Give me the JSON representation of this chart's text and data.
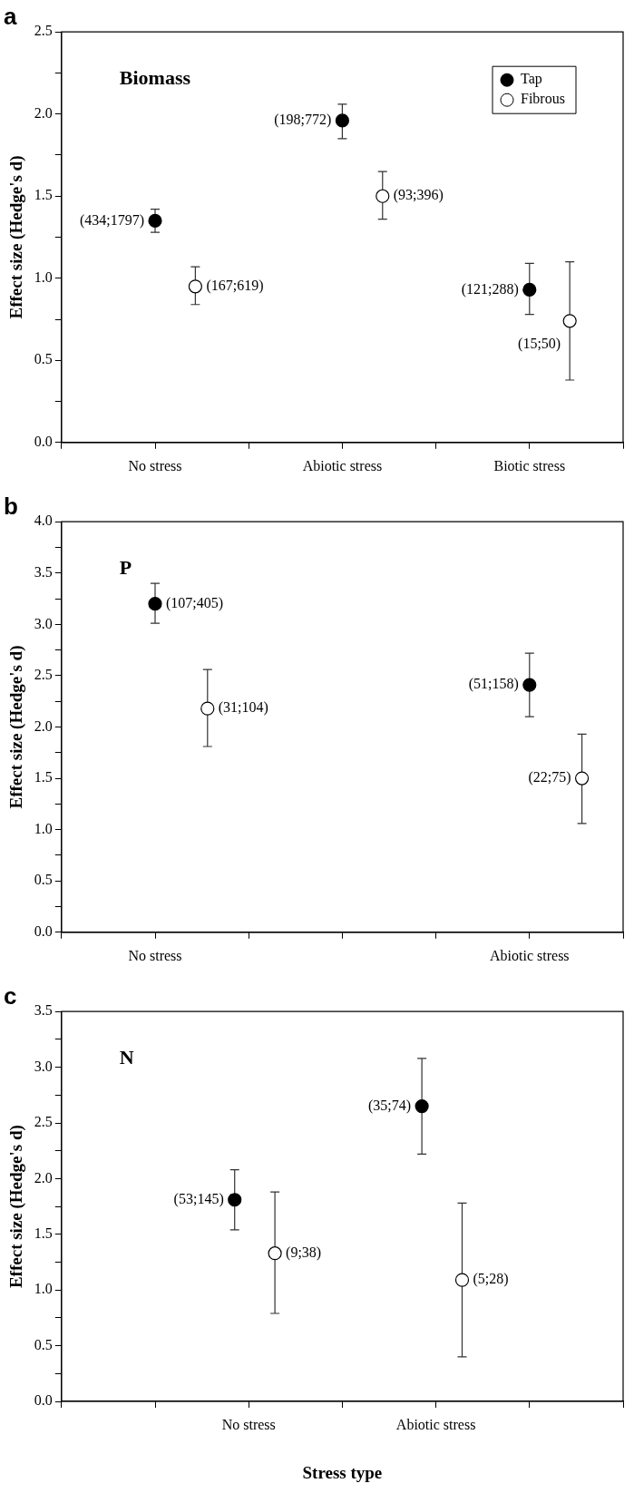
{
  "chart_data": [
    {
      "type": "scatter",
      "title": "a",
      "ylabel": "Effect size (Hedge's d)",
      "annotations": [
        "Biomass"
      ],
      "categories": [
        "No stress",
        "Abiotic stress",
        "Biotic stress"
      ],
      "marker": "circle",
      "legend": "top right",
      "grid": false,
      "ylim": [
        0,
        2.5
      ],
      "yticks": [
        {
          "value": 0,
          "label": "0.0"
        },
        {
          "value": 0.25,
          "label": null
        },
        {
          "value": 0.5,
          "label": "0.5"
        },
        {
          "value": 0.75,
          "label": null
        },
        {
          "value": 1,
          "label": "1.0"
        },
        {
          "value": 1.25,
          "label": null
        },
        {
          "value": 1.5,
          "label": "1.5"
        },
        {
          "value": 1.75,
          "label": null
        },
        {
          "value": 2,
          "label": "2.0"
        },
        {
          "value": 2.25,
          "label": null
        },
        {
          "value": 2.5,
          "label": "2.5"
        }
      ],
      "series": [
        {
          "name": "Tap",
          "color": "#000000",
          "values": [
            1.35,
            1.96,
            0.93
          ],
          "errors": [
            [
              1.28,
              1.42
            ],
            [
              1.85,
              2.06
            ],
            [
              0.78,
              1.09
            ]
          ],
          "value_labels": [
            "(434;1797)",
            "(198;772)",
            "(121;288)"
          ]
        },
        {
          "name": "Fibrous",
          "color": "#ffffff",
          "values": [
            0.95,
            1.5,
            0.74
          ],
          "errors": [
            [
              0.84,
              1.07
            ],
            [
              1.36,
              1.65
            ],
            [
              0.38,
              1.1
            ]
          ],
          "value_labels": [
            "(167;619)",
            "(93;396)",
            "(15;50)"
          ]
        }
      ]
    },
    {
      "type": "scatter",
      "title": "b",
      "ylabel": "Effect size (Hedge's d)",
      "annotations": [
        "P"
      ],
      "categories": [
        "No stress",
        "Abiotic stress"
      ],
      "marker": "circle",
      "grid": false,
      "ylim": [
        0,
        4
      ],
      "yticks": [
        {
          "value": 0,
          "label": "0.0"
        },
        {
          "value": 0.25,
          "label": null
        },
        {
          "value": 0.5,
          "label": "0.5"
        },
        {
          "value": 0.75,
          "label": null
        },
        {
          "value": 1,
          "label": "1.0"
        },
        {
          "value": 1.25,
          "label": null
        },
        {
          "value": 1.5,
          "label": "1.5"
        },
        {
          "value": 1.75,
          "label": null
        },
        {
          "value": 2,
          "label": "2.0"
        },
        {
          "value": 2.25,
          "label": null
        },
        {
          "value": 2.5,
          "label": "2.5"
        },
        {
          "value": 2.75,
          "label": null
        },
        {
          "value": 3,
          "label": "3.0"
        },
        {
          "value": 3.25,
          "label": null
        },
        {
          "value": 3.5,
          "label": "3.5"
        },
        {
          "value": 3.75,
          "label": null
        },
        {
          "value": 4,
          "label": "4.0"
        }
      ],
      "series": [
        {
          "color": "#000000",
          "values": [
            3.2,
            2.41
          ],
          "errors": [
            [
              3.01,
              3.4
            ],
            [
              2.1,
              2.72
            ]
          ],
          "value_labels": [
            "(107;405)",
            "(51;158)"
          ]
        },
        {
          "color": "#ffffff",
          "values": [
            2.18,
            1.5
          ],
          "errors": [
            [
              1.81,
              2.56
            ],
            [
              1.06,
              1.93
            ]
          ],
          "value_labels": [
            "(31;104)",
            "(22;75)"
          ]
        }
      ]
    },
    {
      "type": "scatter",
      "title": "c",
      "xlabel": "Stress type",
      "ylabel": "Effect size (Hedge's d)",
      "annotations": [
        "N"
      ],
      "categories": [
        "No stress",
        "Abiotic stress"
      ],
      "marker": "circle",
      "grid": false,
      "ylim": [
        0,
        3.5
      ],
      "yticks": [
        {
          "value": 0,
          "label": "0.0"
        },
        {
          "value": 0.25,
          "label": null
        },
        {
          "value": 0.5,
          "label": "0.5"
        },
        {
          "value": 0.75,
          "label": null
        },
        {
          "value": 1,
          "label": "1.0"
        },
        {
          "value": 1.25,
          "label": null
        },
        {
          "value": 1.5,
          "label": "1.5"
        },
        {
          "value": 1.75,
          "label": null
        },
        {
          "value": 2,
          "label": "2.0"
        },
        {
          "value": 2.25,
          "label": null
        },
        {
          "value": 2.5,
          "label": "2.5"
        },
        {
          "value": 2.75,
          "label": null
        },
        {
          "value": 3,
          "label": "3.0"
        },
        {
          "value": 3.25,
          "label": null
        },
        {
          "value": 3.5,
          "label": "3.5"
        }
      ],
      "series": [
        {
          "color": "#000000",
          "values": [
            1.81,
            2.65
          ],
          "errors": [
            [
              1.54,
              2.08
            ],
            [
              2.22,
              3.08
            ]
          ],
          "value_labels": [
            "(53;145)",
            "(35;74)"
          ]
        },
        {
          "color": "#ffffff",
          "values": [
            1.33,
            1.09
          ],
          "errors": [
            [
              0.79,
              1.88
            ],
            [
              0.4,
              1.78
            ]
          ],
          "value_labels": [
            "(9;38)",
            "(5;28)"
          ]
        }
      ]
    }
  ]
}
